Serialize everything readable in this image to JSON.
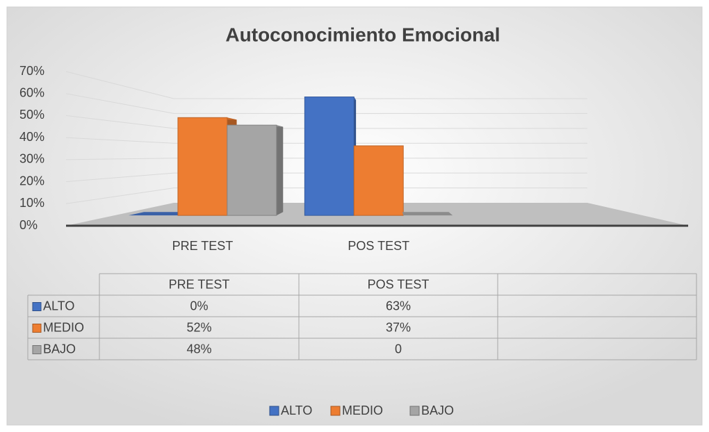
{
  "chart_data": {
    "type": "bar3d",
    "title": "Autoconocimiento Emocional",
    "categories": [
      "PRE TEST",
      "POS TEST",
      null
    ],
    "series": [
      {
        "name": "ALTO",
        "color": "#4472c4",
        "values": [
          0,
          63,
          null
        ],
        "value_labels": [
          "0%",
          "63%",
          null
        ]
      },
      {
        "name": "MEDIO",
        "color": "#ed7d31",
        "values": [
          52,
          37,
          null
        ],
        "value_labels": [
          "52%",
          "37%",
          null
        ]
      },
      {
        "name": "BAJO",
        "color": "#a5a5a5",
        "values": [
          48,
          0,
          null
        ],
        "value_labels": [
          "48%",
          "0",
          null
        ]
      }
    ],
    "ylim": [
      0,
      70
    ],
    "yticks": [
      {
        "value": 0,
        "label": "0%"
      },
      {
        "value": 10,
        "label": "10%"
      },
      {
        "value": 20,
        "label": "20%"
      },
      {
        "value": 30,
        "label": "30%"
      },
      {
        "value": 40,
        "label": "40%"
      },
      {
        "value": 50,
        "label": "50%"
      },
      {
        "value": 60,
        "label": "60%"
      },
      {
        "value": 70,
        "label": "70%"
      }
    ],
    "grid": true,
    "legend": "bottom",
    "data_table": true
  }
}
